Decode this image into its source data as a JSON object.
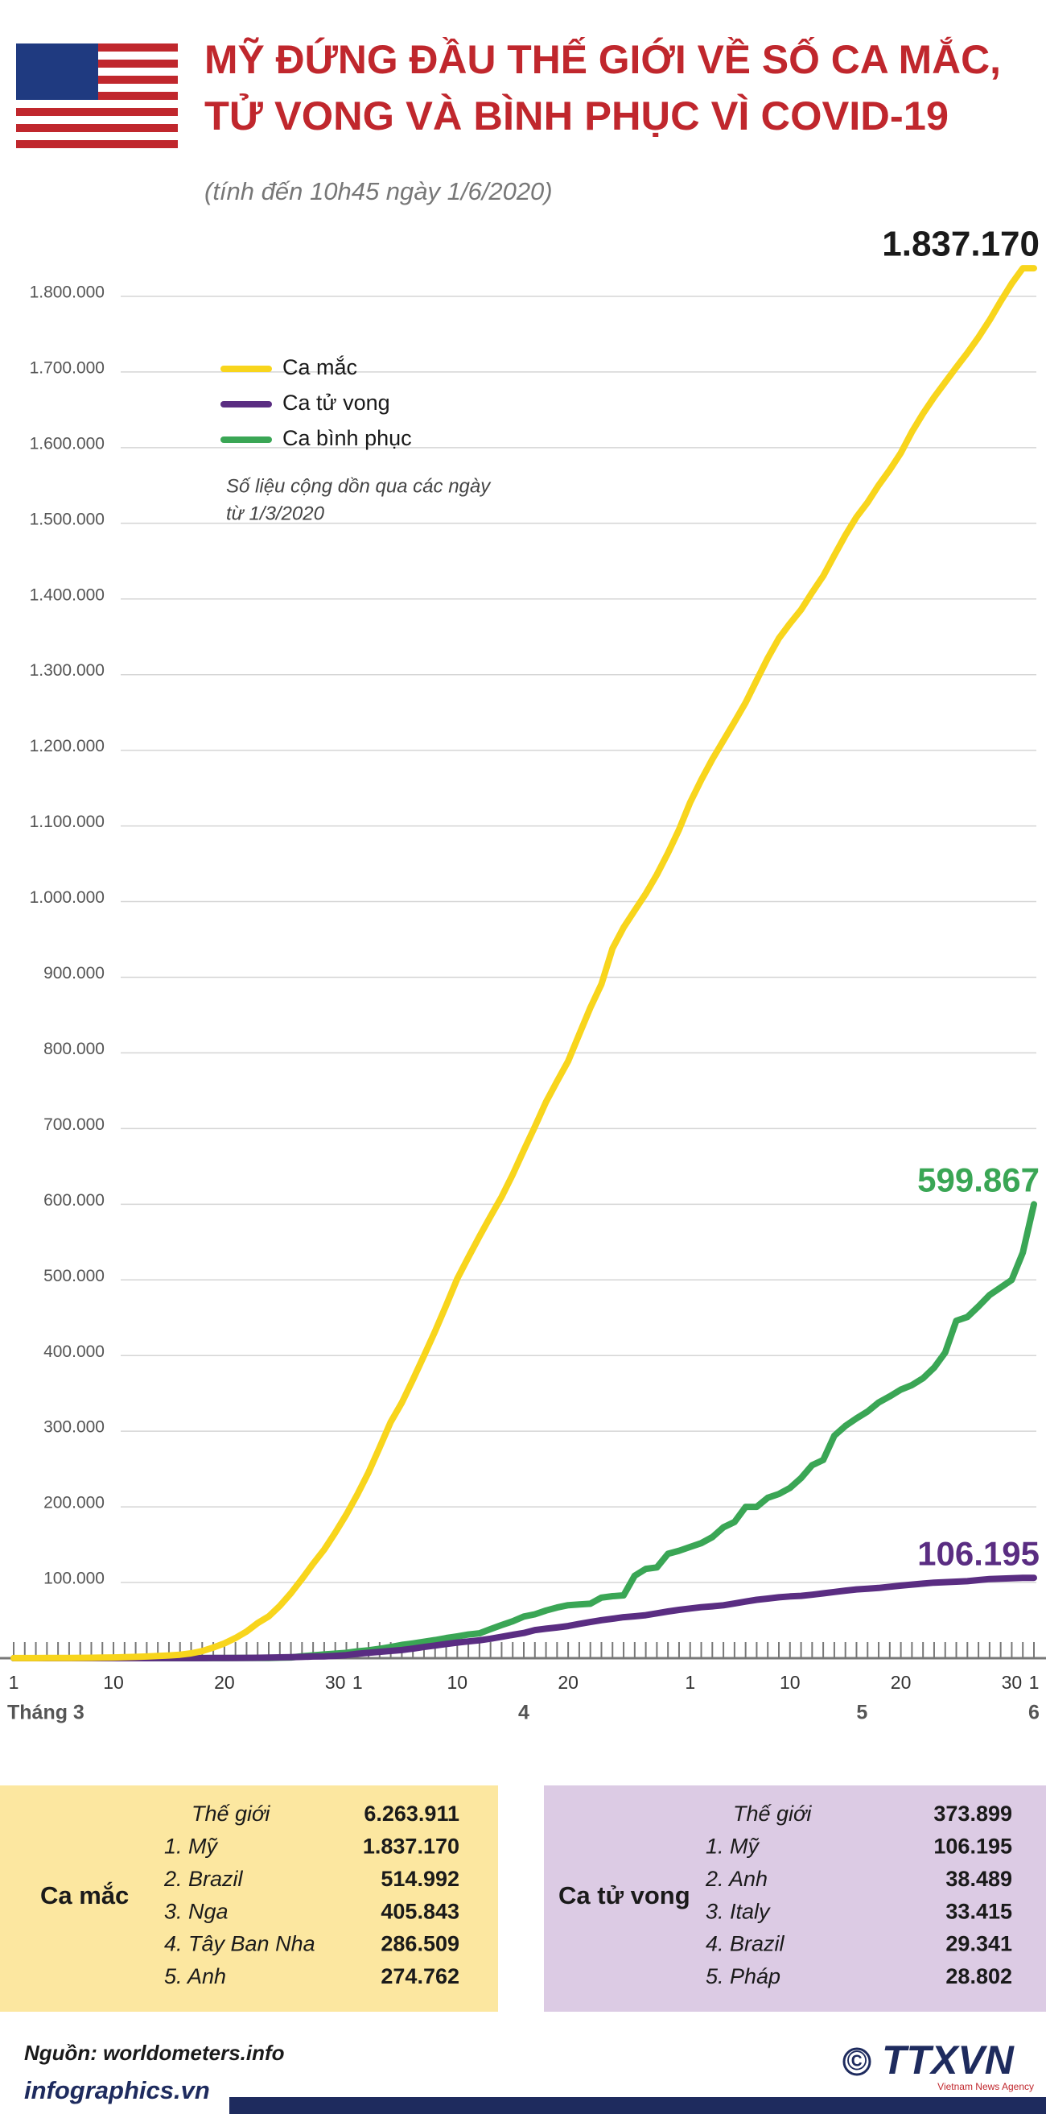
{
  "header": {
    "title": [
      "MỸ ĐỨNG ĐẦU THẾ GIỚI VỀ SỐ CA MẮC,",
      "TỬ VONG VÀ BÌNH PHỤC VÌ COVID-19"
    ],
    "subtitle": "(tính đến 10h45 ngày 1/6/2020)"
  },
  "chart_data": {
    "type": "line",
    "categories": [
      "1",
      null,
      null,
      null,
      null,
      null,
      null,
      null,
      null,
      "10",
      null,
      null,
      null,
      null,
      null,
      null,
      null,
      null,
      null,
      "20",
      null,
      null,
      null,
      null,
      null,
      null,
      null,
      null,
      null,
      "30",
      null,
      "1",
      null,
      null,
      null,
      null,
      null,
      null,
      null,
      null,
      "10",
      null,
      null,
      null,
      null,
      null,
      null,
      null,
      null,
      null,
      "20",
      null,
      null,
      null,
      null,
      null,
      null,
      null,
      null,
      null,
      null,
      "1",
      null,
      null,
      null,
      null,
      null,
      null,
      null,
      null,
      "10",
      null,
      null,
      null,
      null,
      null,
      null,
      null,
      null,
      null,
      "20",
      null,
      null,
      null,
      null,
      null,
      null,
      null,
      null,
      null,
      "30",
      null,
      "1"
    ],
    "months": [
      "Tháng 3",
      "4",
      "5",
      "6"
    ],
    "ylim": [
      0,
      1850000
    ],
    "yticks": [
      {
        "value": 100000,
        "label": "100.000"
      },
      {
        "value": 200000,
        "label": "200.000"
      },
      {
        "value": 300000,
        "label": "300.000"
      },
      {
        "value": 400000,
        "label": "400.000"
      },
      {
        "value": 500000,
        "label": "500.000"
      },
      {
        "value": 600000,
        "label": "600.000"
      },
      {
        "value": 700000,
        "label": "700.000"
      },
      {
        "value": 800000,
        "label": "800.000"
      },
      {
        "value": 900000,
        "label": "900.000"
      },
      {
        "value": 1000000,
        "label": "1.000.000"
      },
      {
        "value": 1100000,
        "label": "1.100.000"
      },
      {
        "value": 1200000,
        "label": "1.200.000"
      },
      {
        "value": 1300000,
        "label": "1.300.000"
      },
      {
        "value": 1400000,
        "label": "1.400.000"
      },
      {
        "value": 1500000,
        "label": "1.500.000"
      },
      {
        "value": 1600000,
        "label": "1.600.000"
      },
      {
        "value": 1700000,
        "label": "1.700.000"
      },
      {
        "value": 1800000,
        "label": "1.800.000"
      }
    ],
    "grid": true,
    "legend": "upper left",
    "note": [
      "Số liệu cộng dồn qua các ngày",
      "từ 1/3/2020"
    ],
    "series": [
      {
        "name": "Ca mắc",
        "color": "#f8d51c",
        "label_color": "#1a1a1a",
        "values": [
          100,
          100,
          100,
          200,
          200,
          300,
          400,
          500,
          700,
          1000,
          1300,
          1700,
          2200,
          2900,
          3600,
          4600,
          6400,
          9400,
          14000,
          19600,
          26700,
          35200,
          46400,
          55200,
          69200,
          85900,
          104700,
          124700,
          143500,
          165900,
          190000,
          216700,
          245500,
          278500,
          312200,
          337600,
          368200,
          399900,
          432100,
          466300,
          501600,
          529900,
          557600,
          584100,
          609700,
          639200,
          671300,
          702600,
          735100,
          762500,
          789100,
          824600,
          859700,
          890900,
          938200,
          965800,
          988200,
          1010500,
          1035700,
          1064200,
          1095300,
          1131000,
          1160800,
          1188100,
          1212800,
          1237600,
          1263100,
          1292600,
          1321800,
          1347900,
          1367600,
          1385800,
          1408600,
          1430300,
          1457600,
          1484300,
          1508300,
          1527700,
          1550300,
          1570600,
          1593000,
          1620900,
          1645100,
          1666800,
          1686400,
          1706200,
          1725300,
          1745900,
          1768500,
          1793500,
          1816900,
          1837170,
          1837170
        ],
        "value_labels": [
          null,
          null,
          null,
          null,
          null,
          null,
          null,
          null,
          null,
          null,
          null,
          null,
          null,
          null,
          null,
          null,
          null,
          null,
          null,
          null,
          null,
          null,
          null,
          null,
          null,
          null,
          null,
          null,
          null,
          null,
          null,
          null,
          null,
          null,
          null,
          null,
          null,
          null,
          null,
          null,
          null,
          null,
          null,
          null,
          null,
          null,
          null,
          null,
          null,
          null,
          null,
          null,
          null,
          null,
          null,
          null,
          null,
          null,
          null,
          null,
          null,
          null,
          null,
          null,
          null,
          null,
          null,
          null,
          null,
          null,
          null,
          null,
          null,
          null,
          null,
          null,
          null,
          null,
          null,
          null,
          null,
          null,
          null,
          null,
          null,
          null,
          null,
          null,
          null,
          null,
          null,
          null,
          "1.837.170"
        ]
      },
      {
        "name": "Ca tử vong",
        "color": "#5a2d82",
        "values": [
          1,
          6,
          9,
          11,
          12,
          15,
          19,
          22,
          26,
          30,
          38,
          41,
          48,
          57,
          68,
          86,
          109,
          150,
          206,
          255,
          301,
          414,
          555,
          780,
          1030,
          1300,
          1700,
          2220,
          2480,
          3100,
          4000,
          5900,
          7100,
          8400,
          9600,
          10800,
          12700,
          14800,
          16700,
          18700,
          20600,
          22100,
          23600,
          25800,
          28300,
          30900,
          33300,
          37100,
          39000,
          40600,
          42500,
          45300,
          47800,
          50200,
          52200,
          54200,
          55400,
          56800,
          59300,
          61700,
          63900,
          65700,
          67400,
          68600,
          69900,
          72300,
          74800,
          77200,
          78800,
          80500,
          81600,
          82400,
          83900,
          85700,
          87500,
          89300,
          90900,
          91900,
          92800,
          94400,
          95900,
          97300,
          98600,
          99800,
          100500,
          101100,
          101800,
          103300,
          104600,
          105100,
          105600,
          106195,
          106195
        ],
        "value_labels": [
          null,
          null,
          null,
          null,
          null,
          null,
          null,
          null,
          null,
          null,
          null,
          null,
          null,
          null,
          null,
          null,
          null,
          null,
          null,
          null,
          null,
          null,
          null,
          null,
          null,
          null,
          null,
          null,
          null,
          null,
          null,
          null,
          null,
          null,
          null,
          null,
          null,
          null,
          null,
          null,
          null,
          null,
          null,
          null,
          null,
          null,
          null,
          null,
          null,
          null,
          null,
          null,
          null,
          null,
          null,
          null,
          null,
          null,
          null,
          null,
          null,
          null,
          null,
          null,
          null,
          null,
          null,
          null,
          null,
          null,
          null,
          null,
          null,
          null,
          null,
          null,
          null,
          null,
          null,
          null,
          null,
          null,
          null,
          null,
          null,
          null,
          null,
          null,
          null,
          null,
          null,
          null,
          "106.195"
        ]
      },
      {
        "name": "Ca bình phục",
        "color": "#3aa655",
        "values": [
          7,
          7,
          7,
          7,
          8,
          8,
          8,
          8,
          8,
          8,
          8,
          12,
          12,
          12,
          12,
          17,
          17,
          106,
          108,
          147,
          171,
          178,
          295,
          361,
          681,
          1000,
          2600,
          3700,
          5000,
          6000,
          7000,
          9000,
          10400,
          12300,
          14800,
          17600,
          19500,
          21700,
          24000,
          26600,
          28800,
          31300,
          32900,
          38400,
          43700,
          48700,
          55000,
          58000,
          63000,
          67000,
          70000,
          71000,
          72000,
          80000,
          82000,
          83000,
          109000,
          118000,
          120000,
          138000,
          142000,
          147000,
          152000,
          160000,
          173000,
          180000,
          200000,
          200000,
          212000,
          217000,
          225000,
          238000,
          255000,
          262000,
          294000,
          307000,
          317000,
          326000,
          338000,
          346000,
          355000,
          361000,
          370000,
          384000,
          404000,
          446000,
          451000,
          465000,
          480000,
          490000,
          500000,
          536000,
          599867
        ],
        "value_labels": [
          null,
          null,
          null,
          null,
          null,
          null,
          null,
          null,
          null,
          null,
          null,
          null,
          null,
          null,
          null,
          null,
          null,
          null,
          null,
          null,
          null,
          null,
          null,
          null,
          null,
          null,
          null,
          null,
          null,
          null,
          null,
          null,
          null,
          null,
          null,
          null,
          null,
          null,
          null,
          null,
          null,
          null,
          null,
          null,
          null,
          null,
          null,
          null,
          null,
          null,
          null,
          null,
          null,
          null,
          null,
          null,
          null,
          null,
          null,
          null,
          null,
          null,
          null,
          null,
          null,
          null,
          null,
          null,
          null,
          null,
          null,
          null,
          null,
          null,
          null,
          null,
          null,
          null,
          null,
          null,
          null,
          null,
          null,
          null,
          null,
          null,
          null,
          null,
          null,
          null,
          null,
          null,
          "599.867"
        ]
      }
    ]
  },
  "tables": [
    {
      "title": "Ca mắc",
      "rows": [
        [
          "Thế giới",
          "6.263.911"
        ],
        [
          "1. Mỹ",
          "1.837.170"
        ],
        [
          "2. Brazil",
          "514.992"
        ],
        [
          "3. Nga",
          "405.843"
        ],
        [
          "4. Tây Ban Nha",
          "286.509"
        ],
        [
          "5. Anh",
          "274.762"
        ]
      ]
    },
    {
      "title": "Ca tử vong",
      "rows": [
        [
          "Thế giới",
          "373.899"
        ],
        [
          "1. Mỹ",
          "106.195"
        ],
        [
          "2. Anh",
          "38.489"
        ],
        [
          "3. Italy",
          "33.415"
        ],
        [
          "4. Brazil",
          "29.341"
        ],
        [
          "5. Pháp",
          "28.802"
        ]
      ]
    }
  ],
  "footer": {
    "source": "Nguồn: worldometers.info",
    "site": "infographics.vn",
    "copyright": "©",
    "logo": "TTXVN",
    "agency": "Vietnam News Agency"
  }
}
